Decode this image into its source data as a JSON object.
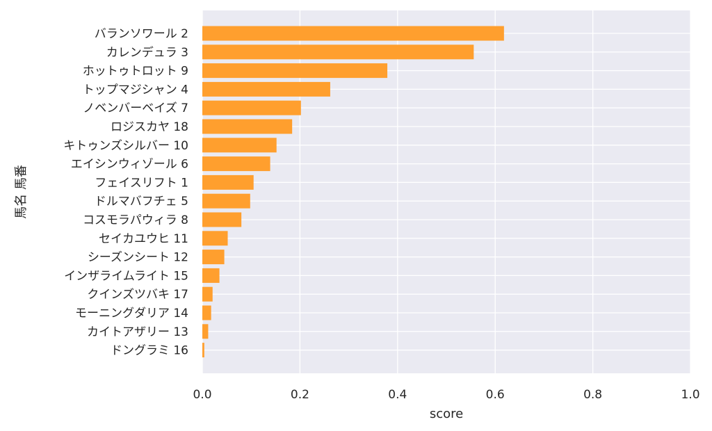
{
  "chart_data": {
    "type": "bar",
    "orientation": "horizontal",
    "xlabel": "score",
    "ylabel": "馬名 馬番",
    "xlim": [
      0.0,
      1.0
    ],
    "xticks": [
      "0.0",
      "0.2",
      "0.4",
      "0.6",
      "0.8",
      "1.0"
    ],
    "grid": true,
    "bar_color": "#ff9f2e",
    "background_color": "#eaeaf2",
    "categories": [
      "バランソワール 2",
      "カレンデュラ 3",
      "ホットゥトロット 9",
      "トップマジシャン 4",
      "ノベンバーベイズ 7",
      "ロジスカヤ 18",
      "キトゥンズシルバー 10",
      "エイシンウィゾール 6",
      "フェイスリフト 1",
      "ドルマバフチェ 5",
      "コスモラパウィラ 8",
      "セイカユウヒ 11",
      "シーズンシート 12",
      "インザライムライト 15",
      "クインズツバキ 17",
      "モーニングダリア 14",
      "カイトアザリー 13",
      "ドングラミ 16"
    ],
    "values": [
      0.618,
      0.556,
      0.379,
      0.262,
      0.202,
      0.184,
      0.152,
      0.139,
      0.105,
      0.098,
      0.08,
      0.052,
      0.045,
      0.035,
      0.021,
      0.018,
      0.012,
      0.004
    ]
  }
}
